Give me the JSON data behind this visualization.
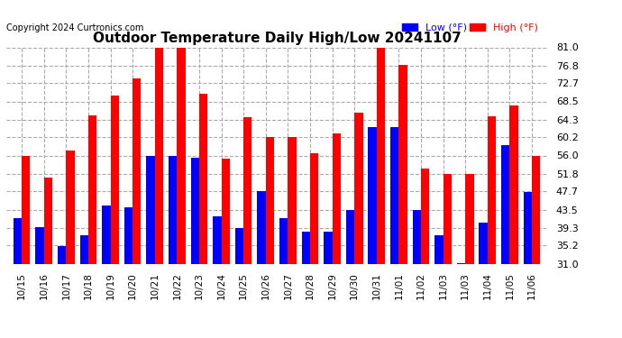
{
  "title": "Outdoor Temperature Daily High/Low 20241107",
  "copyright": "Copyright 2024 Curtronics.com",
  "legend_low": "Low (°F)",
  "legend_high": "High (°F)",
  "low_color": "#0000ff",
  "high_color": "#ff0000",
  "background_color": "#ffffff",
  "grid_color": "#aaaaaa",
  "ylim": [
    31.0,
    81.0
  ],
  "yticks": [
    31.0,
    35.2,
    39.3,
    43.5,
    47.7,
    51.8,
    56.0,
    60.2,
    64.3,
    68.5,
    72.7,
    76.8,
    81.0
  ],
  "dates": [
    "10/15",
    "10/16",
    "10/17",
    "10/18",
    "10/19",
    "10/20",
    "10/21",
    "10/22",
    "10/23",
    "10/24",
    "10/25",
    "10/26",
    "10/27",
    "10/28",
    "10/29",
    "10/30",
    "10/31",
    "11/01",
    "11/02",
    "11/03",
    "11/03",
    "11/04",
    "11/05",
    "11/06"
  ],
  "highs": [
    56.0,
    50.9,
    57.2,
    65.3,
    69.8,
    73.8,
    81.0,
    81.0,
    70.2,
    55.2,
    64.9,
    60.3,
    60.2,
    56.5,
    61.2,
    65.8,
    81.0,
    77.0,
    52.9,
    51.8,
    51.8,
    65.0,
    67.5,
    56.0
  ],
  "lows": [
    41.5,
    39.5,
    35.0,
    37.5,
    44.5,
    44.0,
    55.8,
    55.8,
    55.5,
    42.0,
    39.3,
    47.8,
    41.5,
    38.5,
    38.3,
    43.5,
    62.5,
    62.5,
    43.5,
    37.5,
    31.2,
    40.5,
    58.5,
    47.5
  ]
}
